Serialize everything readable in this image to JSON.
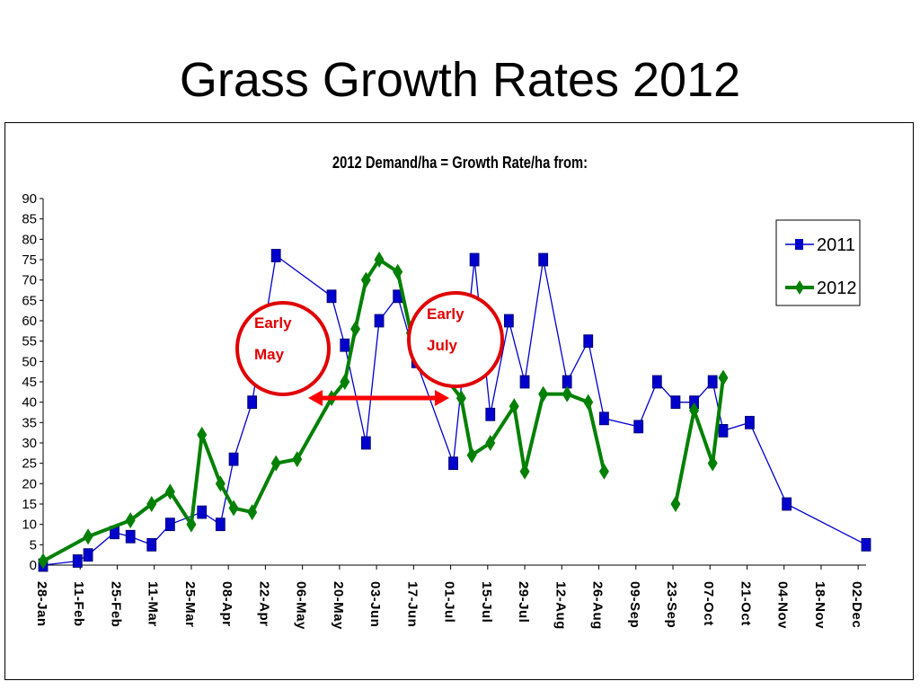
{
  "slide_title": "Grass Growth Rates 2012",
  "chart_data": {
    "type": "line",
    "title": "2012 Demand/ha = Growth Rate/ha  from:",
    "xlabel": "",
    "ylabel": "",
    "ylim": [
      0,
      90
    ],
    "yticks": [
      0,
      5,
      10,
      15,
      20,
      25,
      30,
      35,
      40,
      45,
      50,
      55,
      60,
      65,
      70,
      75,
      80,
      85,
      90
    ],
    "x_tick_labels": [
      "28-Jan",
      "11-Feb",
      "25-Feb",
      "11-Mar",
      "25-Mar",
      "08-Apr",
      "22-Apr",
      "06-May",
      "20-May",
      "03-Jun",
      "17-Jun",
      "01-Jul",
      "15-Jul",
      "29-Jul",
      "12-Aug",
      "26-Aug",
      "09-Sep",
      "23-Sep",
      "07-Oct",
      "21-Oct",
      "04-Nov",
      "18-Nov",
      "02-Dec"
    ],
    "x_start": "2012-01-28",
    "x_end": "2012-12-04",
    "grid": false,
    "legend_position": "right",
    "series": [
      {
        "name": "2011",
        "color": "#0000cc",
        "marker": "square",
        "points": [
          [
            "2012-01-28",
            0
          ],
          [
            "2012-02-10",
            1
          ],
          [
            "2012-02-14",
            2.5
          ],
          [
            "2012-02-24",
            8
          ],
          [
            "2012-03-01",
            7
          ],
          [
            "2012-03-09",
            5
          ],
          [
            "2012-03-16",
            10
          ],
          [
            "2012-03-28",
            13
          ],
          [
            "2012-04-04",
            10
          ],
          [
            "2012-04-09",
            26
          ],
          [
            "2012-04-16",
            40
          ],
          [
            "2012-04-25",
            76
          ],
          [
            "2012-05-16",
            66
          ],
          [
            "2012-05-21",
            54
          ],
          [
            "2012-05-29",
            30
          ],
          [
            "2012-06-03",
            60
          ],
          [
            "2012-06-10",
            66
          ],
          [
            "2012-06-17",
            50
          ],
          [
            "2012-07-01",
            25
          ],
          [
            "2012-07-09",
            75
          ],
          [
            "2012-07-15",
            37
          ],
          [
            "2012-07-22",
            60
          ],
          [
            "2012-07-28",
            45
          ],
          [
            "2012-08-04",
            75
          ],
          [
            "2012-08-13",
            45
          ],
          [
            "2012-08-21",
            55
          ],
          [
            "2012-08-27",
            36
          ],
          [
            "2012-09-09",
            34
          ],
          [
            "2012-09-16",
            45
          ],
          [
            "2012-09-23",
            40
          ],
          [
            "2012-09-30",
            40
          ],
          [
            "2012-10-07",
            45
          ],
          [
            "2012-10-11",
            33
          ],
          [
            "2012-10-21",
            35
          ],
          [
            "2012-11-04",
            15
          ],
          [
            "2012-12-04",
            5
          ]
        ]
      },
      {
        "name": "2012",
        "color": "#008000",
        "marker": "diamond",
        "segments": [
          [
            [
              "2012-01-28",
              1
            ],
            [
              "2012-02-14",
              7
            ],
            [
              "2012-03-01",
              11
            ],
            [
              "2012-03-09",
              15
            ],
            [
              "2012-03-16",
              18
            ],
            [
              "2012-03-24",
              10
            ],
            [
              "2012-03-28",
              32
            ],
            [
              "2012-04-04",
              20
            ],
            [
              "2012-04-09",
              14
            ],
            [
              "2012-04-16",
              13
            ],
            [
              "2012-04-25",
              25
            ],
            [
              "2012-05-03",
              26
            ],
            [
              "2012-05-16",
              41
            ],
            [
              "2012-05-21",
              45
            ],
            [
              "2012-05-25",
              58
            ],
            [
              "2012-05-29",
              70
            ],
            [
              "2012-06-03",
              75
            ],
            [
              "2012-06-10",
              72
            ],
            [
              "2012-06-15",
              57
            ],
            [
              "2012-07-04",
              41
            ],
            [
              "2012-07-08",
              27
            ],
            [
              "2012-07-15",
              30
            ],
            [
              "2012-07-24",
              39
            ],
            [
              "2012-07-28",
              23
            ],
            [
              "2012-08-04",
              42
            ],
            [
              "2012-08-13",
              42
            ],
            [
              "2012-08-21",
              40
            ],
            [
              "2012-08-27",
              23
            ]
          ],
          [
            [
              "2012-09-23",
              15
            ],
            [
              "2012-09-30",
              38
            ],
            [
              "2012-10-07",
              25
            ],
            [
              "2012-10-11",
              46
            ]
          ]
        ]
      }
    ],
    "annotations": [
      {
        "lines": [
          "Early",
          "May"
        ],
        "type": "circle"
      },
      {
        "lines": [
          "Early",
          "July"
        ],
        "type": "circle"
      },
      {
        "type": "double-arrow",
        "color": "#ff0000"
      }
    ]
  }
}
